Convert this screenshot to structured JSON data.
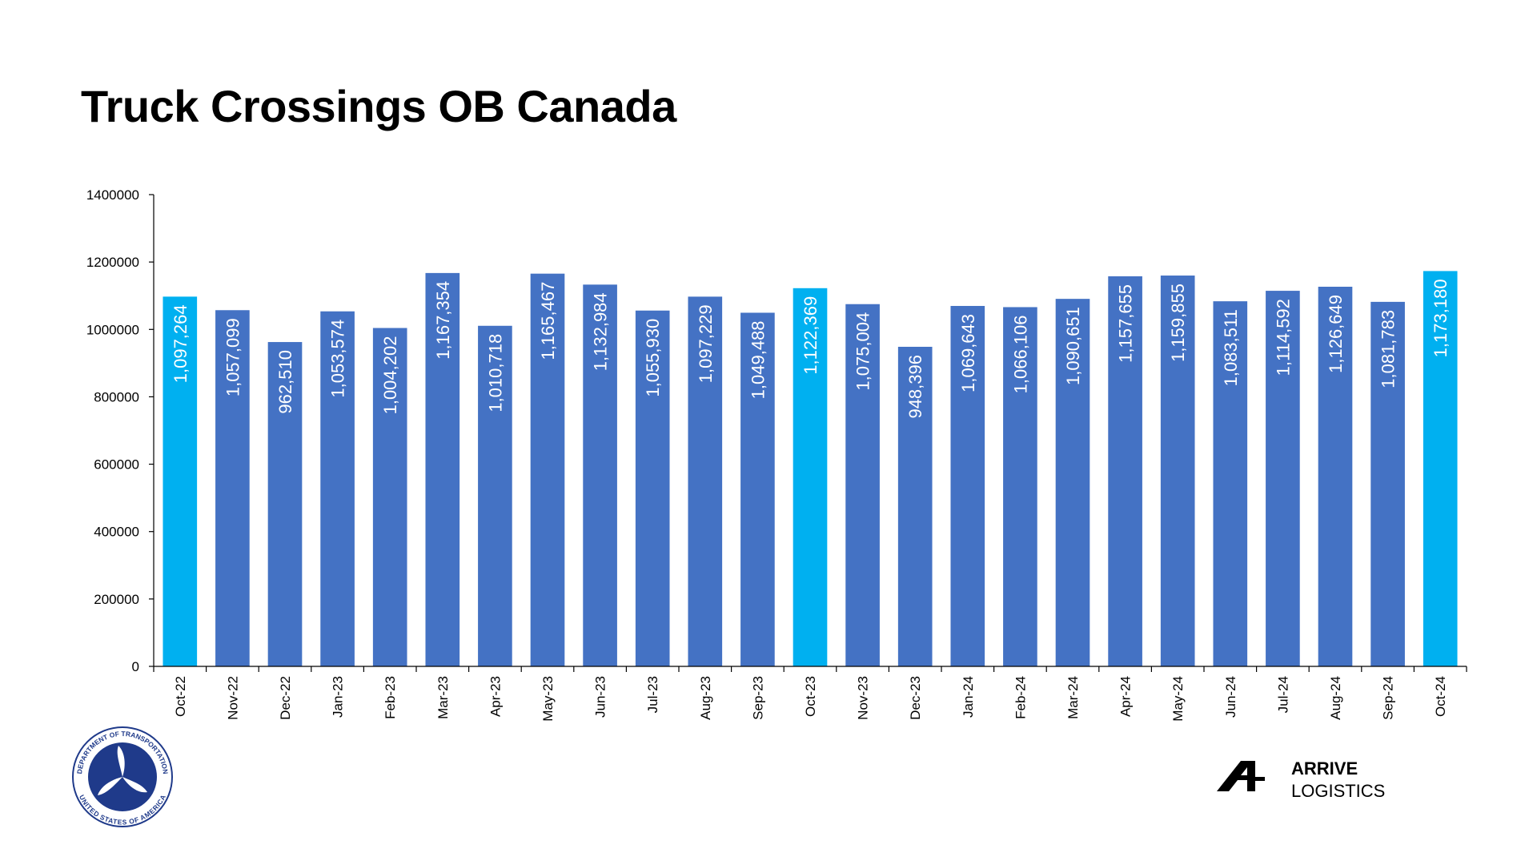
{
  "title": "Truck Crossings OB Canada",
  "logos": {
    "dot_seal_text_top": "DEPARTMENT OF TRANSPORTATION",
    "dot_seal_text_bottom": "UNITED STATES OF AMERICA",
    "brand_line1": "ARRIVE",
    "brand_line2": "LOGISTICS"
  },
  "colors": {
    "bar_default": "#4472C4",
    "bar_highlight": "#00B0F0",
    "seal_blue": "#1F3A8A"
  },
  "chart_data": {
    "type": "bar",
    "title": "Truck Crossings OB Canada",
    "xlabel": "",
    "ylabel": "",
    "ylim": [
      0,
      1400000
    ],
    "y_ticks": [
      "0",
      "200000",
      "400000",
      "600000",
      "800000",
      "1000000",
      "1200000",
      "1400000"
    ],
    "grid": false,
    "legend": "none",
    "categories": [
      "Oct-22",
      "Nov-22",
      "Dec-22",
      "Jan-23",
      "Feb-23",
      "Mar-23",
      "Apr-23",
      "May-23",
      "Jun-23",
      "Jul-23",
      "Aug-23",
      "Sep-23",
      "Oct-23",
      "Nov-23",
      "Dec-23",
      "Jan-24",
      "Feb-24",
      "Mar-24",
      "Apr-24",
      "May-24",
      "Jun-24",
      "Jul-24",
      "Aug-24",
      "Sep-24",
      "Oct-24"
    ],
    "values": [
      1097264,
      1057099,
      962510,
      1053574,
      1004202,
      1167354,
      1010718,
      1165467,
      1132984,
      1055930,
      1097229,
      1049488,
      1122369,
      1075004,
      948396,
      1069643,
      1066106,
      1090651,
      1157655,
      1159855,
      1083511,
      1114592,
      1126649,
      1081783,
      1173180
    ],
    "value_labels": [
      "1,097,264",
      "1,057,099",
      "962,510",
      "1,053,574",
      "1,004,202",
      "1,167,354",
      "1,010,718",
      "1,165,467",
      "1,132,984",
      "1,055,930",
      "1,097,229",
      "1,049,488",
      "1,122,369",
      "1,075,004",
      "948,396",
      "1,069,643",
      "1,066,106",
      "1,090,651",
      "1,157,655",
      "1,159,855",
      "1,083,511",
      "1,114,592",
      "1,126,649",
      "1,081,783",
      "1,173,180"
    ],
    "highlighted_categories": [
      "Oct-22",
      "Oct-23",
      "Oct-24"
    ]
  }
}
